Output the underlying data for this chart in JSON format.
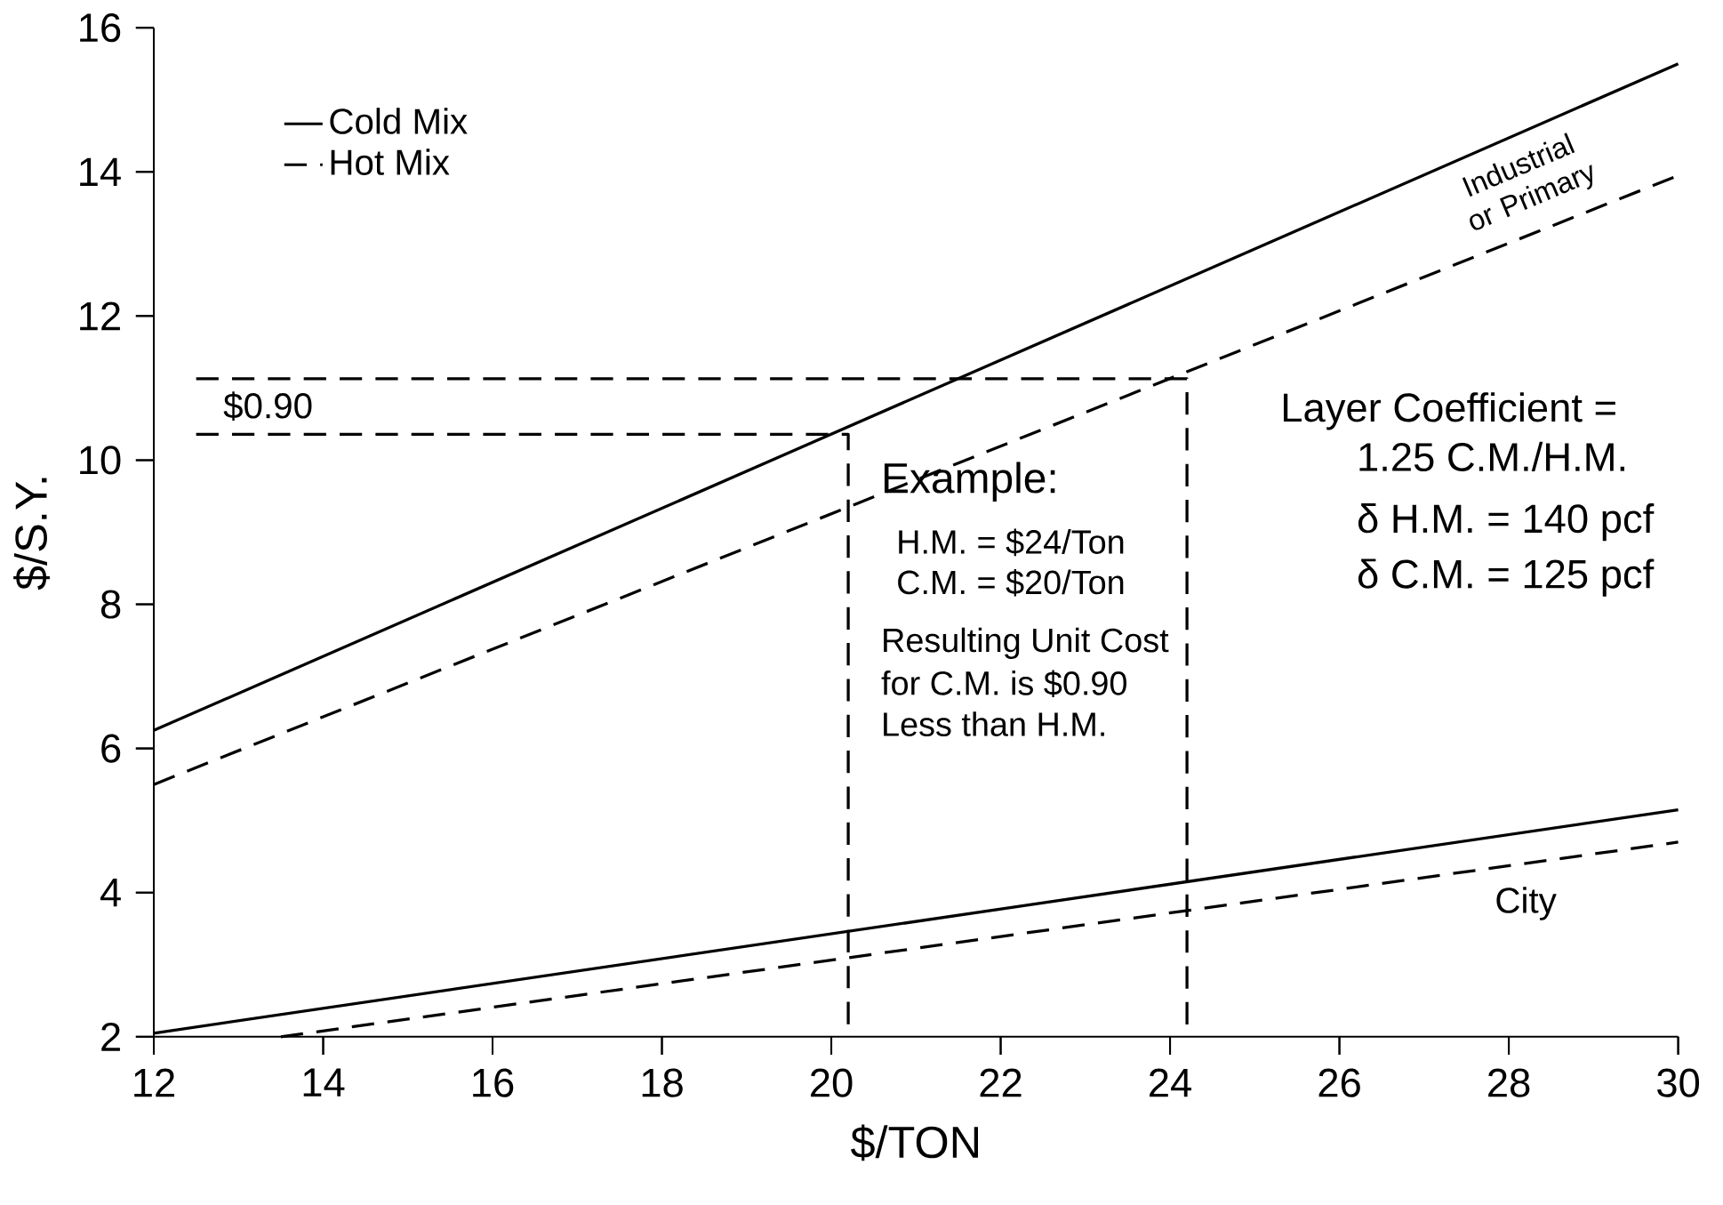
{
  "chart_data": {
    "type": "line",
    "xlabel": "$/TON",
    "ylabel": "$/S.Y.",
    "xlim": [
      12,
      30
    ],
    "ylim": [
      2,
      16
    ],
    "xticks": [
      12,
      14,
      16,
      18,
      20,
      22,
      24,
      26,
      28,
      30
    ],
    "yticks": [
      2,
      4,
      6,
      8,
      10,
      12,
      14,
      16
    ],
    "legend": "top left",
    "grid": false,
    "series": [
      {
        "name": "Cold Mix",
        "color": "#000000",
        "line_style": "solid",
        "x": [
          12,
          30
        ],
        "values": [
          6.25,
          15.5
        ]
      },
      {
        "name": "Hot Mix",
        "color": "#000000",
        "line_style": "dashed",
        "x": [
          12,
          30
        ],
        "values": [
          5.5,
          13.95
        ]
      },
      {
        "color": "#000000",
        "line_style": "solid",
        "x": [
          12,
          30
        ],
        "values": [
          2.05,
          5.15
        ]
      },
      {
        "color": "#000000",
        "line_style": "dashed",
        "x": [
          13.5,
          30
        ],
        "values": [
          2.0,
          4.7
        ]
      },
      {
        "color": "#000000",
        "line_style": "dashed",
        "x": [
          12.5,
          20.2,
          20.2
        ],
        "values": [
          10.36,
          10.36,
          2
        ]
      },
      {
        "color": "#000000",
        "line_style": "dashed",
        "x": [
          12.5,
          24.2,
          24.2
        ],
        "values": [
          11.13,
          11.13,
          2
        ]
      }
    ],
    "annotations": [
      "Industrial or Primary",
      "City",
      "$0.90",
      "Example:",
      "H.M. = $24/Ton",
      "C.M. = $20/Ton",
      "Resulting Unit Cost",
      "for C.M. is $0.90",
      "Less than H.M.",
      "Layer Coefficient =",
      "1.25 C.M./H.M.",
      "δ H.M. = 140 pcf",
      "δ C.M. = 125 pcf"
    ]
  }
}
